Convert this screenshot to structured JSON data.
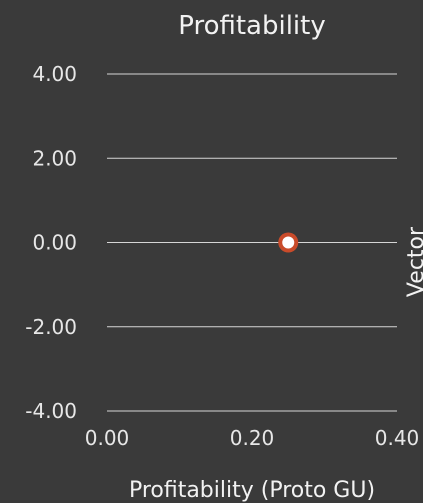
{
  "chart_data": {
    "type": "scatter",
    "title": "Profitability",
    "xlabel": "Profitability (Proto GU)",
    "ylabel": "Vector",
    "xlim": [
      0,
      0.4
    ],
    "ylim": [
      -4,
      4
    ],
    "x_ticks": [
      "0.00",
      "0.20",
      "0.40"
    ],
    "y_ticks": [
      "4.00",
      "2.00",
      "0.00",
      "-2.00",
      "-4.00"
    ],
    "grid": true,
    "points": [
      {
        "x": 0.25,
        "y": 0
      }
    ],
    "marker_color": "#c94b2a",
    "marker_fill": "#ffffff",
    "background_color": "#3a3a3a",
    "grid_color": "#d6d6d6"
  }
}
